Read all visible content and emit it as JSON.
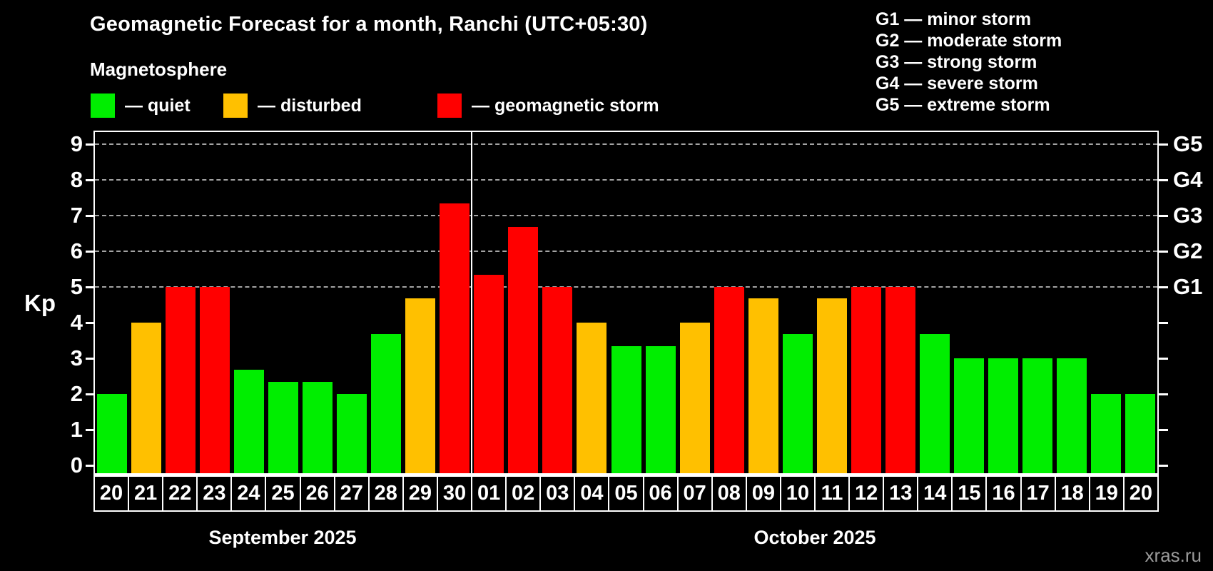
{
  "header": {
    "title": "Geomagnetic Forecast for a month, Ranchi (UTC+05:30)",
    "subtitle": "Magnetosphere"
  },
  "legend": {
    "items": [
      {
        "key": "quiet",
        "label": "— quiet",
        "color": "#00ee00"
      },
      {
        "key": "disturbed",
        "label": "— disturbed",
        "color": "#ffc000"
      },
      {
        "key": "storm",
        "label": "— geomagnetic storm",
        "color": "#ff0000"
      }
    ]
  },
  "g_legend": [
    "G1 — minor storm",
    "G2 — moderate storm",
    "G3 — strong storm",
    "G4 — severe storm",
    "G5 — extreme storm"
  ],
  "watermark": "xras.ru",
  "chart_data": {
    "type": "bar",
    "title": "Geomagnetic Forecast for a month, Ranchi (UTC+05:30)",
    "ylabel": "Kp",
    "ylim": [
      0,
      9
    ],
    "yticks": [
      "0",
      "1",
      "2",
      "3",
      "4",
      "5",
      "6",
      "7",
      "8",
      "9"
    ],
    "gridlines_at": [
      5,
      6,
      7,
      8,
      9
    ],
    "grid": "dashed-horizontal",
    "legend_position": "top-left",
    "right_axis_labels": [
      {
        "kp": 5,
        "label": "G1"
      },
      {
        "kp": 6,
        "label": "G2"
      },
      {
        "kp": 7,
        "label": "G3"
      },
      {
        "kp": 8,
        "label": "G4"
      },
      {
        "kp": 9,
        "label": "G5"
      }
    ],
    "months": [
      {
        "label": "September 2025",
        "days": 11
      },
      {
        "label": "October 2025",
        "days": 20
      }
    ],
    "categories": [
      "20",
      "21",
      "22",
      "23",
      "24",
      "25",
      "26",
      "27",
      "28",
      "29",
      "30",
      "01",
      "02",
      "03",
      "04",
      "05",
      "06",
      "07",
      "08",
      "09",
      "10",
      "11",
      "12",
      "13",
      "14",
      "15",
      "16",
      "17",
      "18",
      "19",
      "20"
    ],
    "values": [
      2,
      4,
      5,
      5,
      2.67,
      2.33,
      2.33,
      2,
      3.67,
      4.67,
      7.33,
      5.33,
      6.67,
      5,
      4,
      3.33,
      3.33,
      4,
      5,
      4.67,
      3.67,
      4.67,
      5,
      5,
      3.67,
      3,
      3,
      3,
      3,
      2,
      2
    ],
    "status": [
      "quiet",
      "disturbed",
      "storm",
      "storm",
      "quiet",
      "quiet",
      "quiet",
      "quiet",
      "quiet",
      "disturbed",
      "storm",
      "storm",
      "storm",
      "storm",
      "disturbed",
      "quiet",
      "quiet",
      "disturbed",
      "storm",
      "disturbed",
      "quiet",
      "disturbed",
      "storm",
      "storm",
      "quiet",
      "quiet",
      "quiet",
      "quiet",
      "quiet",
      "quiet",
      "quiet"
    ],
    "colors": {
      "quiet": "#00ee00",
      "disturbed": "#ffc000",
      "storm": "#ff0000"
    }
  }
}
